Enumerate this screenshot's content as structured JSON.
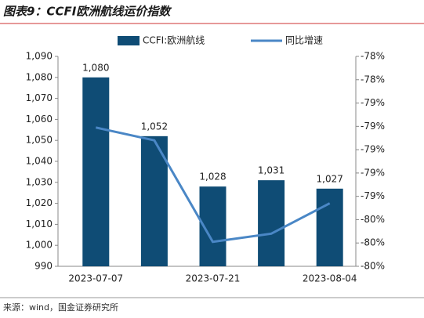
{
  "chart_data": {
    "type": "bar-line",
    "title": "图表9：CCFI欧洲航线运价指数",
    "source": "来源：wind，国金证券研究所",
    "categories": [
      "2023-07-07",
      null,
      "2023-07-21",
      null,
      "2023-08-04"
    ],
    "series": [
      {
        "name": "CCFI:欧洲航线",
        "type": "bar",
        "color": "#0f4c75",
        "values": [
          1080,
          1052,
          1028,
          1031,
          1027
        ],
        "value_labels": [
          "1,080",
          "1,052",
          "1,028",
          "1,031",
          "1,027"
        ]
      },
      {
        "name": "同比增速",
        "type": "line",
        "axis": "y2",
        "color": "#4a87c6",
        "values": [
          -78.86,
          -78.97,
          -79.84,
          -79.77,
          -79.51
        ]
      }
    ],
    "ylim": [
      990,
      1090
    ],
    "yticks": [
      990,
      {
        "value": 1000,
        "label": "1,000"
      },
      {
        "value": 1010,
        "label": "1,010"
      },
      {
        "value": 1020,
        "label": "1,020"
      },
      {
        "value": 1030,
        "label": "1,030"
      },
      {
        "value": 1040,
        "label": "1,040"
      },
      {
        "value": 1050,
        "label": "1,050"
      },
      {
        "value": 1060,
        "label": "1,060"
      },
      {
        "value": 1070,
        "label": "1,070"
      },
      {
        "value": 1080,
        "label": "1,080"
      },
      {
        "value": 1090,
        "label": "1,090"
      }
    ],
    "y2lim": [
      -80.05,
      -78.25
    ],
    "y2ticks": [
      {
        "value": -80.05,
        "label": "-80%"
      },
      {
        "value": -79.85,
        "label": "-80%"
      },
      {
        "value": -79.65,
        "label": "-80%"
      },
      {
        "value": -79.45,
        "label": "-79%"
      },
      {
        "value": -79.25,
        "label": "-79%"
      },
      {
        "value": -79.05,
        "label": "-79%"
      },
      {
        "value": -78.85,
        "label": "-79%"
      },
      {
        "value": -78.65,
        "label": "-79%"
      },
      {
        "value": -78.45,
        "label": "-78%"
      },
      {
        "value": -78.25,
        "label": "-78%"
      }
    ],
    "legend": "top"
  }
}
